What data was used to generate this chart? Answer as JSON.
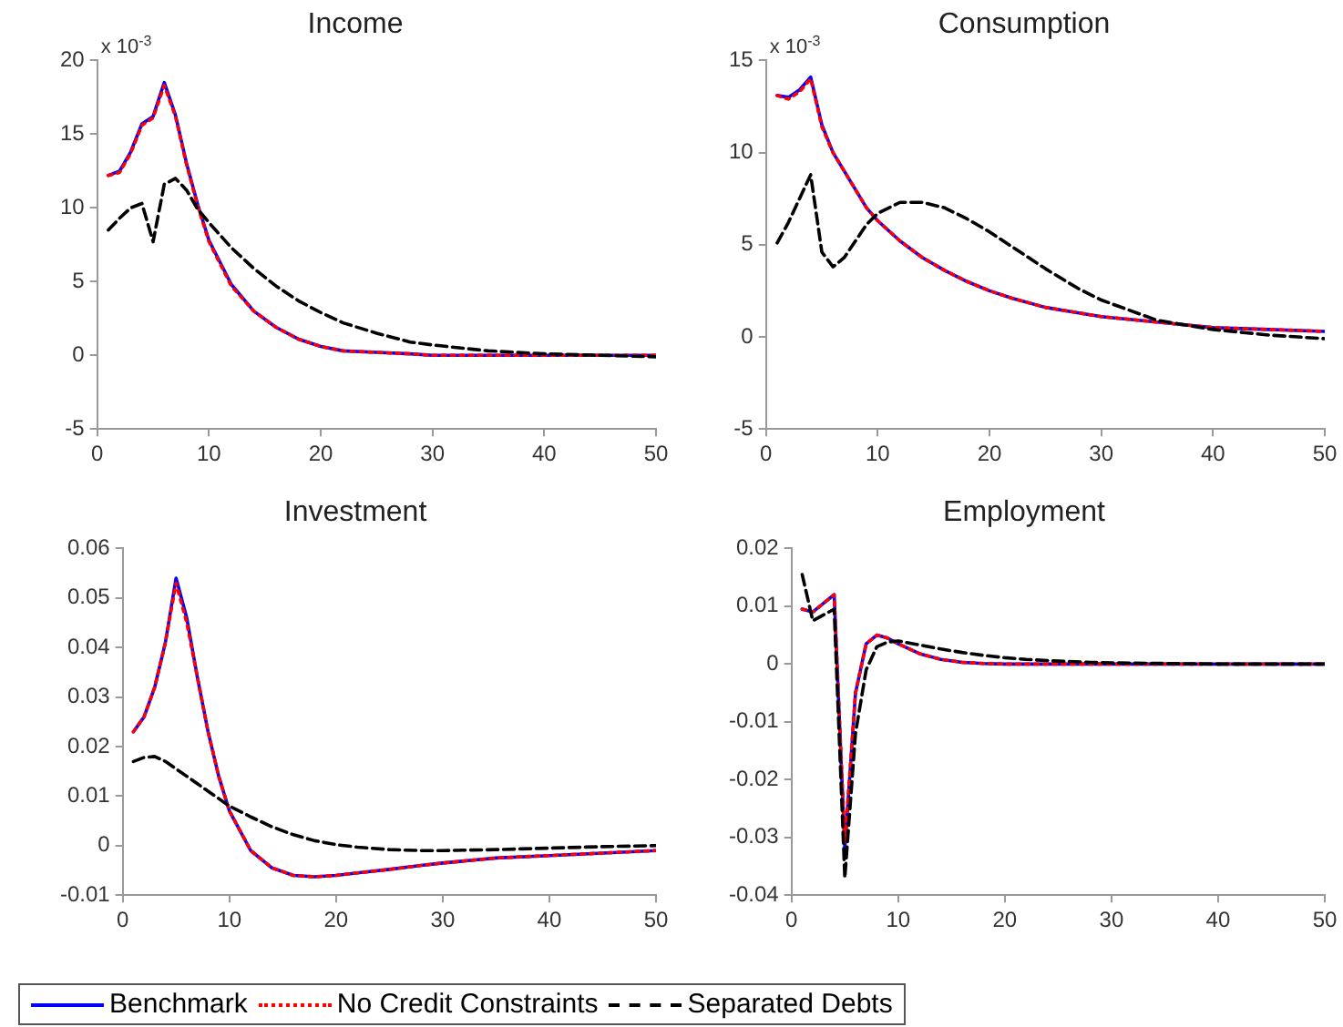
{
  "chart_data": [
    {
      "type": "line",
      "title": "Income",
      "annotations": [
        "x 10$^{-3}$"
      ],
      "legend": "bottom",
      "grid": false,
      "marker": "none",
      "x": [
        1,
        2,
        3,
        4,
        5,
        6,
        7,
        8,
        9,
        10,
        12,
        14,
        16,
        18,
        20,
        22,
        25,
        28,
        30,
        35,
        40,
        45,
        50
      ],
      "xlim": [
        0,
        50
      ],
      "xticks": [
        0,
        10,
        20,
        30,
        40,
        50
      ],
      "ylim": [
        -5,
        20
      ],
      "yticks": [
        -5,
        0,
        5,
        10,
        15,
        20
      ],
      "series": [
        {
          "name": "Benchmark",
          "color": "#0000ff",
          "line_style": "solid",
          "values": [
            12.2,
            12.5,
            13.8,
            15.7,
            16.2,
            18.5,
            16.3,
            13,
            10.2,
            7.8,
            4.8,
            3,
            1.9,
            1.1,
            0.6,
            0.3,
            0.2,
            0.1,
            0,
            0,
            0,
            0,
            0
          ]
        },
        {
          "name": "No Credit Constraints",
          "color": "#ff0000",
          "line_style": "dotted",
          "values": [
            12.2,
            12.4,
            13.7,
            15.6,
            16.1,
            18.3,
            16.2,
            12.9,
            10.1,
            7.7,
            4.7,
            3,
            1.9,
            1.1,
            0.6,
            0.3,
            0.2,
            0.1,
            0,
            0,
            0,
            0,
            0
          ]
        },
        {
          "name": "Separated Debts",
          "color": "#000000",
          "line_style": "dashed",
          "values": [
            8.5,
            9.3,
            10,
            10.3,
            7.7,
            11.6,
            12,
            11.2,
            9.9,
            9,
            7.3,
            5.9,
            4.7,
            3.7,
            2.9,
            2.2,
            1.5,
            0.9,
            0.7,
            0.3,
            0.1,
            0,
            -0.1
          ]
        }
      ]
    },
    {
      "type": "line",
      "title": "Consumption",
      "annotations": [
        "x 10$^{-3}$"
      ],
      "grid": false,
      "marker": "none",
      "x": [
        1,
        2,
        3,
        4,
        5,
        6,
        7,
        8,
        9,
        10,
        12,
        14,
        16,
        18,
        20,
        22,
        25,
        28,
        30,
        35,
        40,
        45,
        50
      ],
      "xlim": [
        0,
        50
      ],
      "xticks": [
        0,
        10,
        20,
        30,
        40,
        50
      ],
      "ylim": [
        -5,
        15
      ],
      "yticks": [
        -5,
        0,
        5,
        10,
        15
      ],
      "series": [
        {
          "color": "#0000ff",
          "line_style": "solid",
          "values": [
            13.1,
            13,
            13.4,
            14.1,
            11.5,
            10,
            9,
            8,
            7,
            6.3,
            5.2,
            4.3,
            3.6,
            3,
            2.5,
            2.1,
            1.6,
            1.3,
            1.1,
            0.8,
            0.5,
            0.4,
            0.3
          ]
        },
        {
          "color": "#ff0000",
          "line_style": "dotted",
          "values": [
            13.1,
            12.9,
            13.3,
            14,
            11.4,
            10,
            9,
            8,
            7,
            6.3,
            5.2,
            4.3,
            3.6,
            3,
            2.5,
            2.1,
            1.6,
            1.3,
            1.1,
            0.8,
            0.5,
            0.4,
            0.3
          ]
        },
        {
          "color": "#000000",
          "line_style": "dashed",
          "values": [
            5.1,
            6.2,
            7.5,
            8.8,
            4.6,
            3.8,
            4.3,
            5.2,
            6.1,
            6.7,
            7.3,
            7.3,
            7,
            6.4,
            5.7,
            4.9,
            3.7,
            2.6,
            2,
            0.9,
            0.4,
            0.1,
            -0.1
          ]
        }
      ]
    },
    {
      "type": "line",
      "title": "Investment",
      "grid": false,
      "marker": "none",
      "x": [
        1,
        2,
        3,
        4,
        5,
        6,
        7,
        8,
        9,
        10,
        12,
        14,
        16,
        18,
        20,
        22,
        25,
        28,
        30,
        35,
        40,
        45,
        50
      ],
      "xlim": [
        0,
        50
      ],
      "xticks": [
        0,
        10,
        20,
        30,
        40,
        50
      ],
      "ylim": [
        -0.01,
        0.06
      ],
      "yticks": [
        -0.01,
        0,
        0.01,
        0.02,
        0.03,
        0.04,
        0.05,
        0.06
      ],
      "series": [
        {
          "color": "#0000ff",
          "line_style": "solid",
          "values": [
            0.023,
            0.026,
            0.032,
            0.041,
            0.054,
            0.046,
            0.034,
            0.023,
            0.014,
            0.007,
            -0.001,
            -0.0045,
            -0.006,
            -0.0063,
            -0.006,
            -0.0055,
            -0.0048,
            -0.004,
            -0.0035,
            -0.0025,
            -0.002,
            -0.0015,
            -0.001
          ]
        },
        {
          "color": "#ff0000",
          "line_style": "dotted",
          "values": [
            0.023,
            0.026,
            0.032,
            0.041,
            0.053,
            0.045,
            0.034,
            0.023,
            0.014,
            0.007,
            -0.001,
            -0.0045,
            -0.006,
            -0.0063,
            -0.006,
            -0.0055,
            -0.0048,
            -0.004,
            -0.0035,
            -0.0025,
            -0.002,
            -0.0015,
            -0.001
          ]
        },
        {
          "color": "#000000",
          "line_style": "dashed",
          "values": [
            0.017,
            0.0178,
            0.018,
            0.017,
            0.0155,
            0.014,
            0.0125,
            0.011,
            0.0095,
            0.008,
            0.0058,
            0.0038,
            0.0022,
            0.001,
            0.0002,
            -0.0003,
            -0.0008,
            -0.001,
            -0.001,
            -0.0008,
            -0.0005,
            -0.0002,
            0
          ]
        }
      ]
    },
    {
      "type": "line",
      "title": "Employment",
      "grid": false,
      "marker": "none",
      "x": [
        1,
        2,
        3,
        4,
        5,
        6,
        7,
        8,
        9,
        10,
        12,
        14,
        16,
        18,
        20,
        22,
        25,
        28,
        30,
        35,
        40,
        45,
        50
      ],
      "xlim": [
        0,
        50
      ],
      "xticks": [
        0,
        10,
        20,
        30,
        40,
        50
      ],
      "ylim": [
        -0.04,
        0.02
      ],
      "yticks": [
        -0.04,
        -0.03,
        -0.02,
        -0.01,
        0,
        0.01,
        0.02
      ],
      "series": [
        {
          "color": "#0000ff",
          "line_style": "solid",
          "values": [
            0.0095,
            0.009,
            0.0105,
            0.012,
            -0.032,
            -0.005,
            0.0035,
            0.005,
            0.0045,
            0.0035,
            0.0018,
            0.0008,
            0.0003,
            0.0001,
            0,
            0,
            0,
            0,
            0,
            0,
            0,
            0,
            0
          ]
        },
        {
          "color": "#ff0000",
          "line_style": "dotted",
          "values": [
            0.0095,
            0.009,
            0.0105,
            0.012,
            -0.031,
            -0.005,
            0.0035,
            0.005,
            0.0045,
            0.0035,
            0.0018,
            0.0008,
            0.0003,
            0.0001,
            0,
            0,
            0,
            0,
            0,
            0,
            0,
            0,
            0
          ]
        },
        {
          "color": "#000000",
          "line_style": "dashed",
          "values": [
            0.0155,
            0.0075,
            0.0085,
            0.0095,
            -0.037,
            -0.012,
            -0.001,
            0.003,
            0.0038,
            0.004,
            0.0033,
            0.0026,
            0.002,
            0.0015,
            0.0011,
            0.0008,
            0.0005,
            0.0003,
            0.0002,
            0.0001,
            0,
            0,
            0
          ]
        }
      ]
    }
  ]
}
